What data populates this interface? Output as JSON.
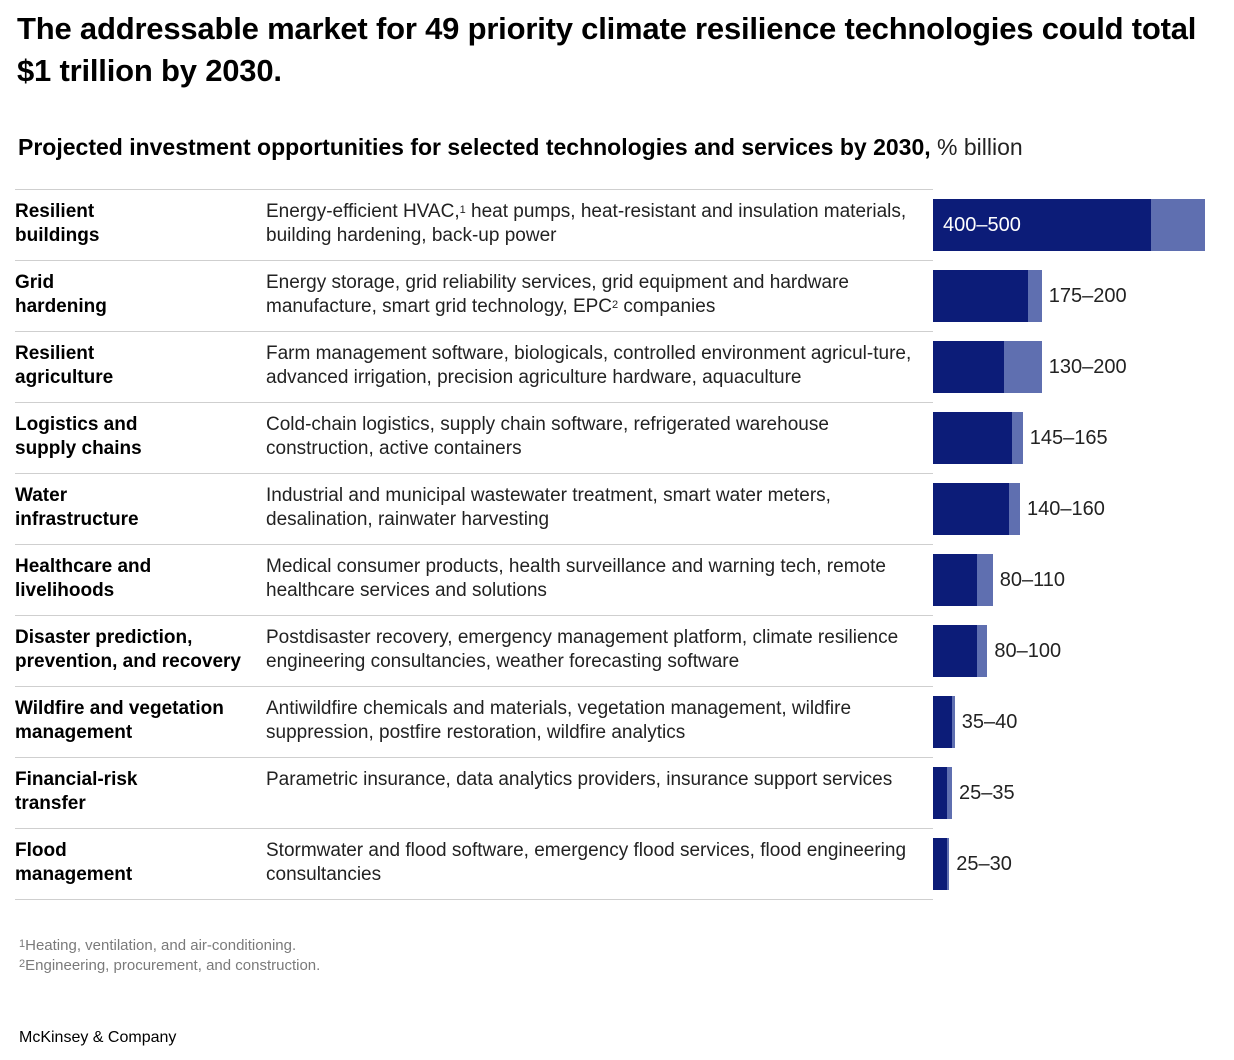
{
  "title": "The addressable market for 49 priority climate resilience technologies could total $1 trillion by 2030.",
  "subtitle": "Projected investment opportunities for selected technologies and services by 2030,",
  "subtitle_unit": "% billion",
  "colors": {
    "low": "#0c1c78",
    "high": "#5f6fb0",
    "grid": "#cfcfcf"
  },
  "chart_data": {
    "type": "bar",
    "orientation": "horizontal",
    "unit": "billion",
    "categories": [
      "Resilient buildings",
      "Grid hardening",
      "Resilient agriculture",
      "Logistics and supply chains",
      "Water infrastructure",
      "Healthcare and livelihoods",
      "Disaster prediction, prevention, and recovery",
      "Wildfire and vegetation management",
      "Financial-risk transfer",
      "Flood management"
    ],
    "series": [
      {
        "name": "low",
        "values": [
          400,
          175,
          130,
          145,
          140,
          80,
          80,
          35,
          25,
          25
        ]
      },
      {
        "name": "high",
        "values": [
          500,
          200,
          200,
          165,
          160,
          110,
          100,
          40,
          35,
          30
        ]
      }
    ],
    "xlim": [
      0,
      500
    ]
  },
  "rows": [
    {
      "category": [
        "Resilient",
        "buildings"
      ],
      "desc_parts": [
        "Energy-efficient HVAC,",
        "1",
        " heat pumps, heat-resistant and insulation materials, building hardening, back-up power"
      ],
      "label": "400–500"
    },
    {
      "category": [
        "Grid",
        "hardening"
      ],
      "desc_parts": [
        "Energy storage, grid reliability services, grid equipment and hardware manufacture, smart grid technology, EPC",
        "2",
        " companies"
      ],
      "label": "175–200"
    },
    {
      "category": [
        "Resilient",
        "agriculture"
      ],
      "desc_parts": [
        "Farm management software, biologicals, controlled environment agricul-ture, advanced irrigation, precision agriculture hardware, aquaculture"
      ],
      "label": "130–200"
    },
    {
      "category": [
        "Logistics and",
        "supply chains"
      ],
      "desc_parts": [
        "Cold-chain logistics, supply chain software, refrigerated warehouse construction, active containers"
      ],
      "label": "145–165"
    },
    {
      "category": [
        "Water",
        "infrastructure"
      ],
      "desc_parts": [
        "Industrial and municipal wastewater treatment, smart water meters, desalination, rainwater harvesting"
      ],
      "label": "140–160"
    },
    {
      "category": [
        "Healthcare and",
        "livelihoods"
      ],
      "desc_parts": [
        "Medical consumer products, health surveillance and warning tech, remote healthcare services and solutions"
      ],
      "label": "80–110"
    },
    {
      "category": [
        "Disaster prediction,",
        "prevention, and recovery"
      ],
      "desc_parts": [
        "Postdisaster recovery, emergency management platform, climate resilience engineering consultancies, weather forecasting software"
      ],
      "label": "80–100"
    },
    {
      "category": [
        "Wildfire and vegetation",
        "management"
      ],
      "desc_parts": [
        "Antiwildfire chemicals and materials, vegetation management, wildfire suppression, postfire restoration, wildfire analytics"
      ],
      "label": "35–40"
    },
    {
      "category": [
        "Financial-risk",
        "transfer"
      ],
      "desc_parts": [
        "Parametric insurance, data analytics providers, insurance support services"
      ],
      "label": "25–35"
    },
    {
      "category": [
        "Flood",
        "management"
      ],
      "desc_parts": [
        "Stormwater and flood software, emergency flood services, flood engineering consultancies"
      ],
      "label": "25–30"
    }
  ],
  "footnotes": [
    {
      "mark": "1",
      "text": "Heating, ventilation, and air-conditioning."
    },
    {
      "mark": "2",
      "text": "Engineering, procurement, and construction."
    }
  ],
  "source": "McKinsey & Company"
}
